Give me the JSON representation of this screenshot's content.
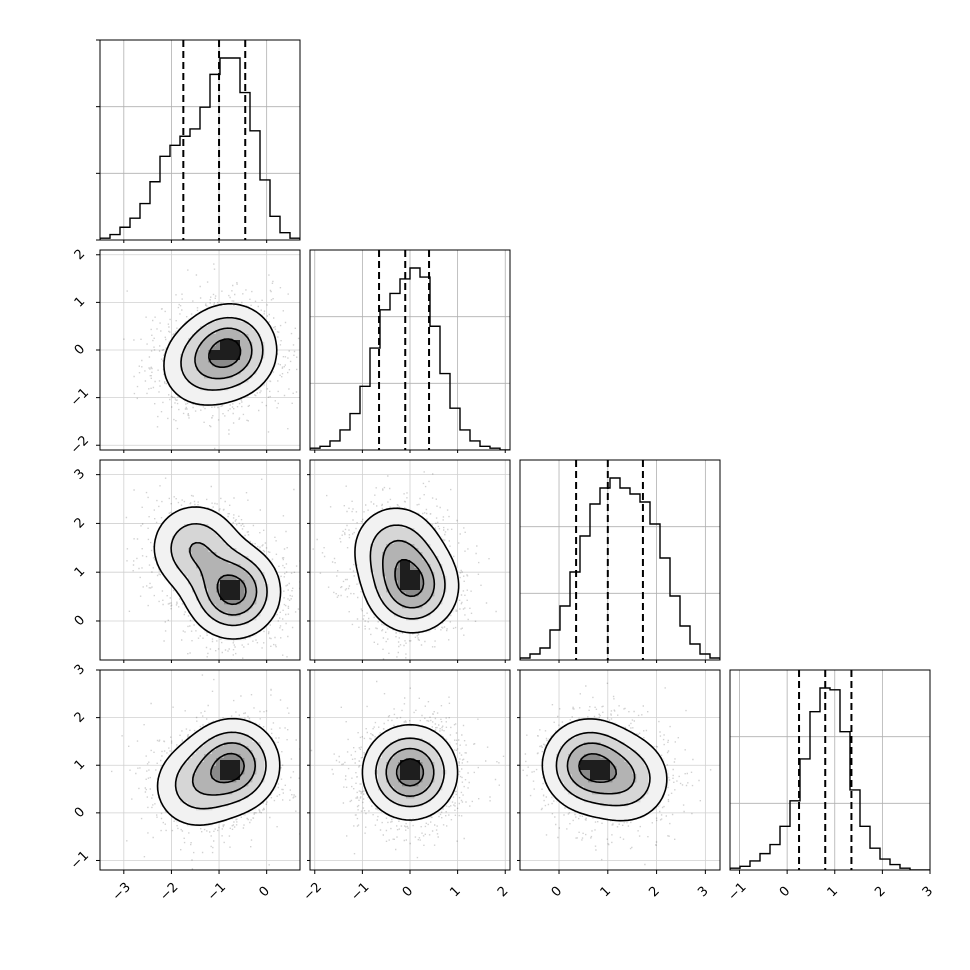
{
  "chart_data": {
    "type": "corner",
    "grid": true,
    "variables": [
      {
        "range": [
          -3.5,
          0.7
        ],
        "ticks": [
          -3,
          -2,
          -1,
          0
        ],
        "tick_labels": [
          "−3",
          "−2",
          "−1",
          "0"
        ],
        "quantiles": [
          -1.75,
          -1.0,
          -0.45
        ]
      },
      {
        "range": [
          -2.1,
          2.1
        ],
        "ticks": [
          -2,
          -1,
          0,
          1,
          2
        ],
        "tick_labels": [
          "−2",
          "−1",
          "0",
          "1",
          "2"
        ],
        "quantiles": [
          -0.65,
          -0.1,
          0.4
        ]
      },
      {
        "range": [
          -0.8,
          3.3
        ],
        "ticks": [
          0,
          1,
          2,
          3
        ],
        "tick_labels": [
          "0",
          "1",
          "2",
          "3"
        ],
        "quantiles": [
          0.35,
          1.0,
          1.72
        ]
      },
      {
        "range": [
          -1.2,
          3.0
        ],
        "ticks": [
          -1,
          0,
          1,
          2,
          3
        ],
        "tick_labels": [
          "−1",
          "0",
          "1",
          "2",
          "3"
        ],
        "quantiles": [
          0.25,
          0.8,
          1.35
        ]
      }
    ],
    "histograms": [
      {
        "variable": 0,
        "counts": [
          0.01,
          0.03,
          0.07,
          0.12,
          0.2,
          0.32,
          0.46,
          0.52,
          0.57,
          0.61,
          0.73,
          0.91,
          1.0,
          1.0,
          0.81,
          0.6,
          0.33,
          0.13,
          0.04,
          0.01
        ]
      },
      {
        "variable": 1,
        "counts": [
          0.01,
          0.02,
          0.05,
          0.11,
          0.2,
          0.35,
          0.56,
          0.77,
          0.86,
          0.94,
          1.0,
          0.95,
          0.68,
          0.42,
          0.23,
          0.11,
          0.05,
          0.02,
          0.01,
          0.0
        ]
      },
      {
        "variable": 2,
        "counts": [
          0.01,
          0.03,
          0.06,
          0.15,
          0.27,
          0.44,
          0.62,
          0.78,
          0.86,
          0.91,
          0.86,
          0.83,
          0.79,
          0.68,
          0.51,
          0.32,
          0.17,
          0.08,
          0.03,
          0.01
        ]
      },
      {
        "variable": 3,
        "counts": [
          0.01,
          0.02,
          0.05,
          0.09,
          0.14,
          0.24,
          0.38,
          0.61,
          0.87,
          1.0,
          0.99,
          0.76,
          0.44,
          0.24,
          0.12,
          0.06,
          0.03,
          0.01,
          0.0,
          0.0
        ]
      }
    ],
    "density_panels": [
      {
        "row": 1,
        "col": 0,
        "modes": [
          [
            -0.75,
            0.0,
            1.0
          ],
          [
            -1.4,
            -0.35,
            0.45
          ]
        ]
      },
      {
        "row": 2,
        "col": 0,
        "modes": [
          [
            -0.7,
            0.6,
            1.0
          ],
          [
            -1.5,
            1.5,
            0.6
          ]
        ]
      },
      {
        "row": 2,
        "col": 1,
        "modes": [
          [
            0.05,
            0.7,
            1.0
          ],
          [
            -0.3,
            1.5,
            0.6
          ]
        ]
      },
      {
        "row": 3,
        "col": 0,
        "modes": [
          [
            -0.7,
            1.0,
            1.0
          ],
          [
            -1.5,
            0.55,
            0.5
          ]
        ]
      },
      {
        "row": 3,
        "col": 1,
        "modes": [
          [
            0.0,
            0.85,
            1.0
          ]
        ]
      },
      {
        "row": 3,
        "col": 2,
        "modes": [
          [
            0.6,
            1.0,
            1.0
          ],
          [
            1.4,
            0.7,
            0.6
          ]
        ]
      }
    ],
    "contour_levels": [
      0.13,
      0.35,
      0.6,
      0.85
    ]
  }
}
